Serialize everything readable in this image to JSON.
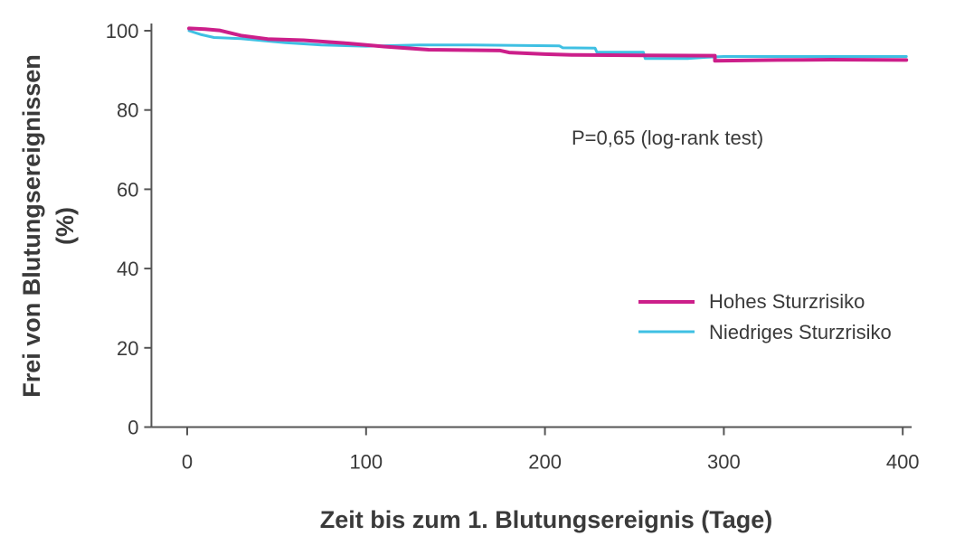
{
  "chart_data": {
    "type": "line",
    "title": "",
    "xlabel": "Zeit bis zum 1. Blutungsereignis (Tage)",
    "ylabel_line1": "Frei von Blutungsereignissen",
    "ylabel_line2": "(%)",
    "xlim": [
      -20,
      405
    ],
    "ylim": [
      0,
      100
    ],
    "x_ticks": [
      0,
      100,
      200,
      300,
      400
    ],
    "y_ticks": [
      0,
      20,
      40,
      60,
      80,
      100
    ],
    "grid": false,
    "legend_position": "right",
    "annotation": "P=0,65 (log-rank test)",
    "series": [
      {
        "name": "Hohes Sturzrisiko",
        "color": "#cc1f8a",
        "points": [
          [
            1,
            100.6
          ],
          [
            10,
            100.4
          ],
          [
            18,
            100.1
          ],
          [
            30,
            98.8
          ],
          [
            45,
            97.9
          ],
          [
            65,
            97.6
          ],
          [
            90,
            96.8
          ],
          [
            110,
            96.0
          ],
          [
            135,
            95.2
          ],
          [
            175,
            95.0
          ],
          [
            180,
            94.5
          ],
          [
            200,
            94.1
          ],
          [
            215,
            93.9
          ],
          [
            255,
            93.8
          ],
          [
            295,
            93.7
          ],
          [
            295,
            92.4
          ],
          [
            330,
            92.6
          ],
          [
            360,
            92.7
          ],
          [
            402,
            92.6
          ]
        ]
      },
      {
        "name": "Niedriges Sturzrisiko",
        "color": "#3fc0e3",
        "points": [
          [
            1,
            100.0
          ],
          [
            8,
            99.0
          ],
          [
            15,
            98.3
          ],
          [
            30,
            98.0
          ],
          [
            55,
            97.0
          ],
          [
            75,
            96.4
          ],
          [
            100,
            96.1
          ],
          [
            130,
            96.4
          ],
          [
            160,
            96.4
          ],
          [
            208,
            96.2
          ],
          [
            210,
            95.7
          ],
          [
            228,
            95.6
          ],
          [
            229,
            94.6
          ],
          [
            255,
            94.6
          ],
          [
            256,
            93.0
          ],
          [
            280,
            93.0
          ],
          [
            290,
            93.3
          ],
          [
            300,
            93.5
          ],
          [
            340,
            93.5
          ],
          [
            402,
            93.5
          ]
        ]
      }
    ]
  }
}
